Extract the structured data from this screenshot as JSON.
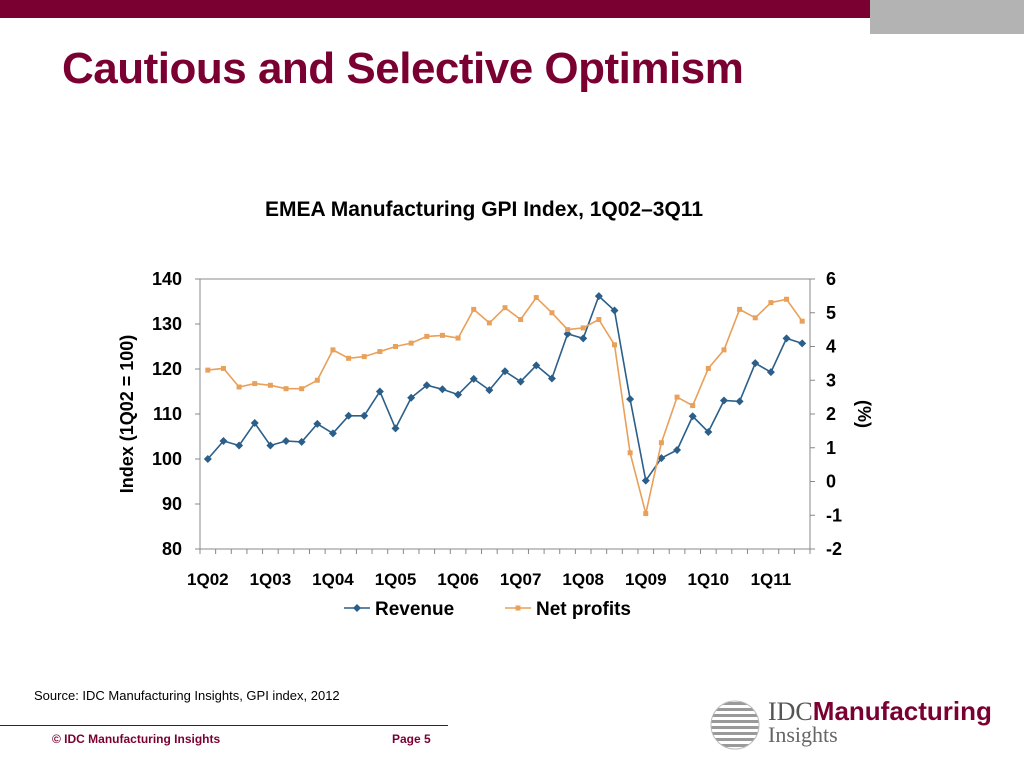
{
  "slide": {
    "title": "Cautious and Selective Optimism",
    "source": "Source: IDC Manufacturing Insights, GPI index, 2012",
    "footer_copyright": "© IDC Manufacturing Insights",
    "footer_page": "Page 5"
  },
  "logo": {
    "brand_prefix": "IDC",
    "brand_main": "Manufacturing",
    "brand_sub": "Insights"
  },
  "colors": {
    "brand": "#7a0032",
    "revenue": "#2b5f8a",
    "net_profits": "#e8a05a"
  },
  "chart_data": {
    "type": "line",
    "title": "EMEA Manufacturing GPI Index, 1Q02–3Q11",
    "y_left_label": "Index (1Q02 = 100)",
    "y_right_label": "(%)",
    "ylim_left": [
      80,
      140
    ],
    "ylim_right": [
      -2,
      6
    ],
    "yticks_left": [
      "80",
      "90",
      "100",
      "110",
      "120",
      "130",
      "140"
    ],
    "yticks_right": [
      "-2",
      "-1",
      "0",
      "1",
      "2",
      "3",
      "4",
      "5",
      "6"
    ],
    "x_tick_labels": [
      "1Q02",
      "1Q03",
      "1Q04",
      "1Q05",
      "1Q06",
      "1Q07",
      "1Q08",
      "1Q09",
      "1Q10",
      "1Q11"
    ],
    "categories": [
      "1Q02",
      "2Q02",
      "3Q02",
      "4Q02",
      "1Q03",
      "2Q03",
      "3Q03",
      "4Q03",
      "1Q04",
      "2Q04",
      "3Q04",
      "4Q04",
      "1Q05",
      "2Q05",
      "3Q05",
      "4Q05",
      "1Q06",
      "2Q06",
      "3Q06",
      "4Q06",
      "1Q07",
      "2Q07",
      "3Q07",
      "4Q07",
      "1Q08",
      "2Q08",
      "3Q08",
      "4Q08",
      "1Q09",
      "2Q09",
      "3Q09",
      "4Q09",
      "1Q10",
      "2Q10",
      "3Q10",
      "4Q10",
      "1Q11",
      "2Q11",
      "3Q11"
    ],
    "grid": false,
    "legend_position": "bottom",
    "series": [
      {
        "name": "Revenue",
        "axis": "left",
        "marker": "diamond",
        "values": [
          100,
          104,
          103,
          108,
          103,
          104,
          103.8,
          107.8,
          105.7,
          109.6,
          109.6,
          115,
          106.8,
          113.6,
          116.4,
          115.5,
          114.3,
          117.8,
          115.3,
          119.5,
          117.2,
          120.8,
          117.9,
          127.8,
          126.8,
          136.2,
          133,
          113.3,
          95.2,
          100.2,
          102,
          109.5,
          106,
          113,
          112.8,
          121.3,
          119.3,
          126.8,
          125.7
        ]
      },
      {
        "name": "Net profits",
        "axis": "right",
        "marker": "square",
        "values": [
          3.3,
          3.35,
          2.8,
          2.9,
          2.85,
          2.75,
          2.75,
          3.0,
          3.9,
          3.65,
          3.7,
          3.85,
          4.0,
          4.1,
          4.3,
          4.33,
          4.25,
          5.1,
          4.7,
          5.15,
          4.8,
          5.45,
          5.0,
          4.5,
          4.55,
          4.8,
          4.05,
          0.85,
          -0.95,
          1.15,
          2.5,
          2.25,
          3.35,
          3.9,
          5.1,
          4.85,
          5.3,
          5.4,
          4.75
        ]
      }
    ]
  }
}
